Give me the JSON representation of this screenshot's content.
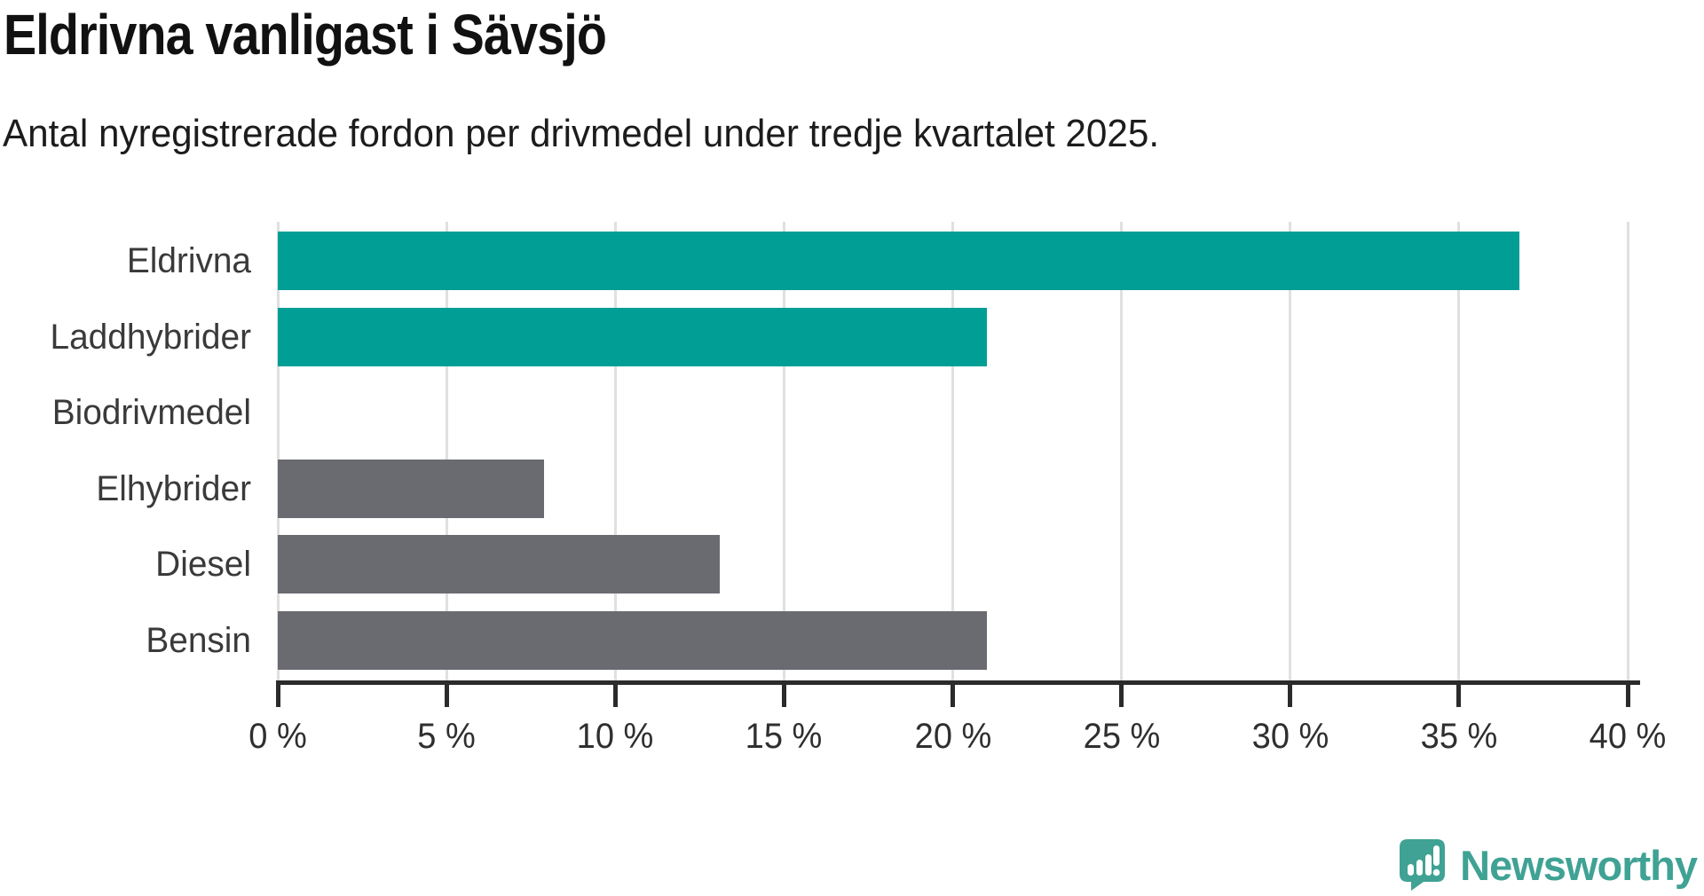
{
  "title": "Eldrivna vanligast i Sävsjö",
  "subtitle": "Antal nyregistrerade fordon per drivmedel under tredje kvartalet 2025.",
  "branding": {
    "logo_text": "Newsworthy"
  },
  "colors": {
    "highlight_bar": "#009e94",
    "default_bar": "#6a6a71",
    "gridline": "#e0e0e0",
    "axis": "#2b2b2b",
    "title_text": "#111111",
    "subtitle_text": "#1c1c1c",
    "label_text": "#3a3a3a",
    "tick_text": "#2f2f2f",
    "logo": "#3fa294",
    "background": "#ffffff"
  },
  "chart_data": {
    "type": "bar",
    "orientation": "horizontal",
    "title": "Eldrivna vanligast i Sävsjö",
    "subtitle": "Antal nyregistrerade fordon per drivmedel under tredje kvartalet 2025.",
    "categories": [
      "Eldrivna",
      "Laddhybrider",
      "Biodrivmedel",
      "Elhybrider",
      "Diesel",
      "Bensin"
    ],
    "values": [
      36.8,
      21.0,
      0,
      7.9,
      13.1,
      21.0
    ],
    "unit": "%",
    "highlighted": [
      true,
      true,
      true,
      false,
      false,
      false
    ],
    "xlabel": "",
    "ylabel": "",
    "xlim": [
      0,
      40
    ],
    "xtick_step": 5,
    "xtick_labels": [
      "0 %",
      "5 %",
      "10 %",
      "15 %",
      "20 %",
      "25 %",
      "30 %",
      "35 %",
      "40 %"
    ],
    "grid": true,
    "legend": false
  }
}
